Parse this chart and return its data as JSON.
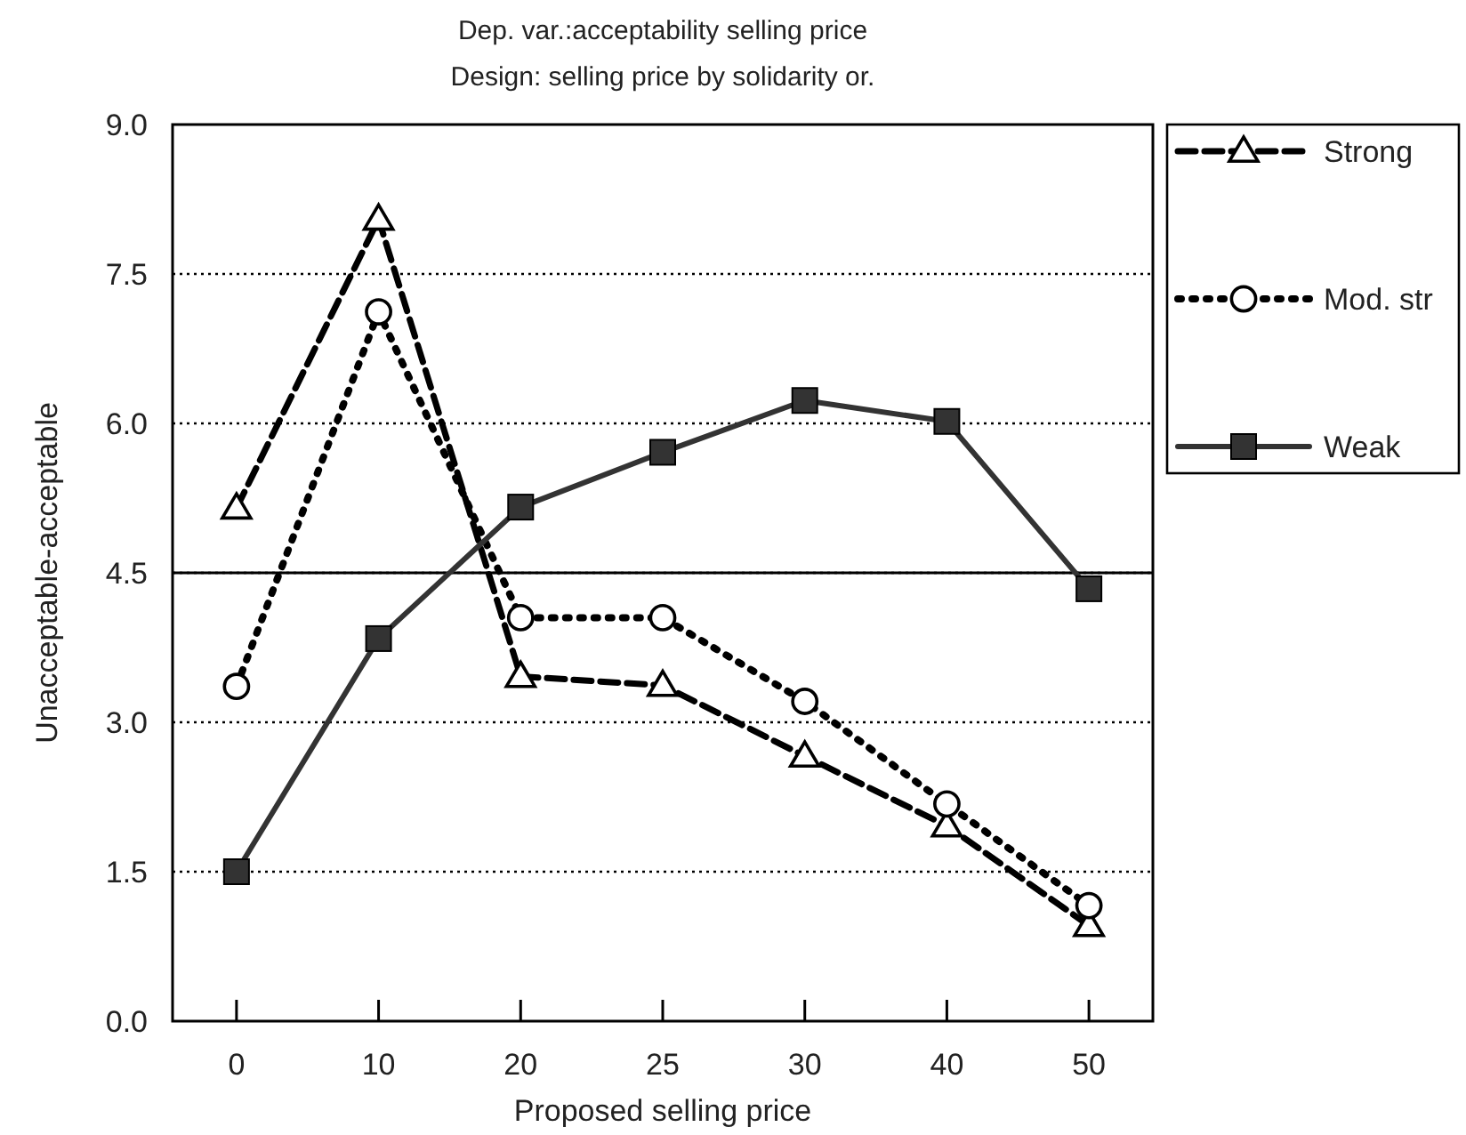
{
  "chart_data": {
    "type": "line",
    "title": "Dep. var.:acceptability selling price",
    "subtitle": "Design: selling price by solidarity or.",
    "xlabel": "Proposed selling price",
    "ylabel": "Unacceptable-acceptable",
    "categories": [
      "0",
      "10",
      "20",
      "25",
      "30",
      "40",
      "50"
    ],
    "ylim": [
      0,
      9
    ],
    "yticks": [
      {
        "value": 0,
        "label": "0.0"
      },
      {
        "value": 1.5,
        "label": "1.5"
      },
      {
        "value": 3,
        "label": "3.0"
      },
      {
        "value": 4.5,
        "label": "4.5"
      },
      {
        "value": 6,
        "label": "6.0"
      },
      {
        "value": 7.5,
        "label": "7.5"
      },
      {
        "value": 9,
        "label": "9.0"
      }
    ],
    "grid": "y",
    "legend": "right",
    "ref_lines": [
      {
        "axis": "y",
        "value": 4.5,
        "line_style": "solid",
        "color": "#000000"
      }
    ],
    "series": [
      {
        "name": "Strong",
        "color": "#000000",
        "marker": "triangle",
        "line_style": "dashed",
        "values": [
          5.15,
          8.05,
          3.46,
          3.37,
          2.66,
          1.96,
          0.96
        ]
      },
      {
        "name": "Mod. str",
        "color": "#000000",
        "marker": "circle",
        "line_style": "dotted",
        "values": [
          3.36,
          7.12,
          4.05,
          4.05,
          3.21,
          2.18,
          1.16
        ]
      },
      {
        "name": "Weak",
        "color": "#333333",
        "marker": "square",
        "line_style": "solid",
        "values": [
          1.5,
          3.84,
          5.16,
          5.71,
          6.23,
          6.02,
          4.34
        ]
      }
    ]
  }
}
